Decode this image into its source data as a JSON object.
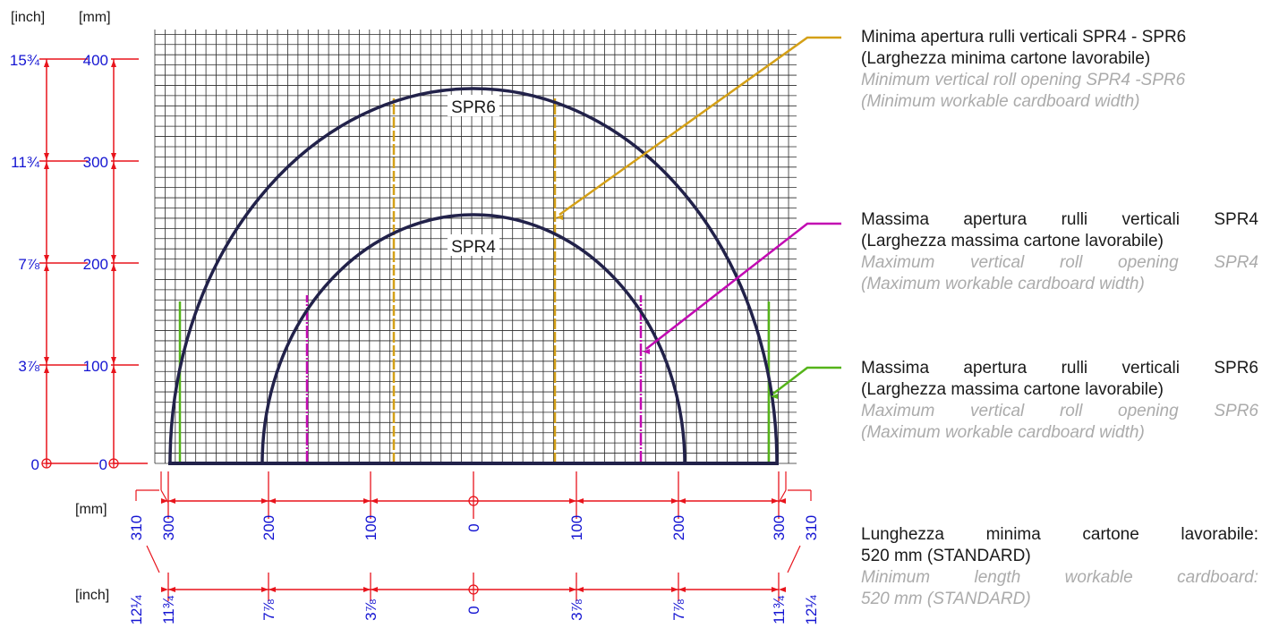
{
  "units": {
    "inch": "[inch]",
    "mm": "[mm]"
  },
  "left_scale": [
    {
      "mm": "400",
      "inch": "15¾"
    },
    {
      "mm": "300",
      "inch": "11¾"
    },
    {
      "mm": "200",
      "inch": "7⅞"
    },
    {
      "mm": "100",
      "inch": "3⅞"
    },
    {
      "mm": "0",
      "inch": "0"
    }
  ],
  "bottom_scale": [
    {
      "mm": "310",
      "inch": "12¼",
      "side": "left"
    },
    {
      "mm": "300",
      "inch": "11¾"
    },
    {
      "mm": "200",
      "inch": "7⅞"
    },
    {
      "mm": "100",
      "inch": "3⅞"
    },
    {
      "mm": "0",
      "inch": "0"
    },
    {
      "mm": "100",
      "inch": "3⅞"
    },
    {
      "mm": "200",
      "inch": "7⅞"
    },
    {
      "mm": "300",
      "inch": "11¾"
    },
    {
      "mm": "310",
      "inch": "12¼",
      "side": "right"
    }
  ],
  "arcs": {
    "large": "SPR6",
    "small": "SPR4"
  },
  "legend": {
    "min_opening": {
      "it1": "Minima apertura rulli verticali SPR4 - SPR6",
      "it2": "(Larghezza minima cartone lavorabile)",
      "en1": "Minimum vertical roll opening SPR4 -SPR6",
      "en2": "(Minimum workable cardboard width)"
    },
    "max_spr4": {
      "it1": "Massima apertura rulli verticali SPR4",
      "it2": "(Larghezza massima cartone lavorabile)",
      "en1": "Maximum vertical roll opening SPR4",
      "en2": "(Maximum workable cardboard width)"
    },
    "max_spr6": {
      "it1": "Massima apertura rulli verticali SPR6",
      "it2": "(Larghezza massima cartone lavorabile)",
      "en1": "Maximum vertical roll opening SPR6",
      "en2": "(Maximum workable cardboard width)"
    },
    "min_length": {
      "it1": "Lunghezza minima cartone lavorabile:",
      "it2": "520 mm (STANDARD)",
      "en1": "Minimum length workable cardboard:",
      "en2": "520 mm (STANDARD)"
    }
  },
  "colors": {
    "arc": "#22224a",
    "scale": "#e8141c",
    "label": "#1414d2",
    "min_opening": "#d4a017",
    "max_spr4": "#c20ab2",
    "max_spr6": "#55b41a",
    "grid": "#2a2a2a"
  }
}
